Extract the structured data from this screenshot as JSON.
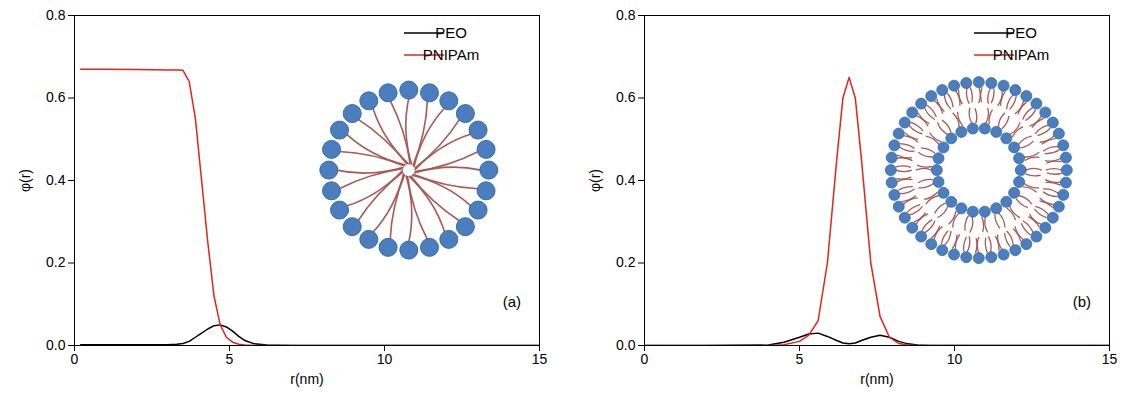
{
  "chart_data": [
    {
      "type": "line",
      "x_label": "r(nm)",
      "y_label": "φ(r)",
      "annotations": [
        "(a)"
      ],
      "legend": "top-right",
      "xlim": [
        0,
        15
      ],
      "xticks": [
        0,
        5,
        10,
        15
      ],
      "ylim": [
        0,
        0.8
      ],
      "yticks": [
        {
          "value": 0,
          "label": "0.0"
        },
        0.2,
        0.4,
        0.6,
        0.8
      ],
      "x": [
        0.2,
        1,
        2,
        3,
        3.3,
        3.5,
        3.7,
        3.9,
        4.1,
        4.3,
        4.5,
        4.7,
        4.9,
        5.1,
        5.3,
        5.5,
        5.8,
        6.2,
        7,
        8,
        10,
        12,
        15
      ],
      "series": [
        {
          "name": "PEO",
          "color": "#000000",
          "values": [
            0.002,
            0.002,
            0.002,
            0.002,
            0.003,
            0.005,
            0.01,
            0.02,
            0.03,
            0.04,
            0.048,
            0.05,
            0.045,
            0.035,
            0.022,
            0.012,
            0.004,
            0.001,
            0,
            0,
            0,
            0,
            0
          ]
        },
        {
          "name": "PNIPAm",
          "color": "#e3241c",
          "values": [
            0.67,
            0.67,
            0.669,
            0.668,
            0.668,
            0.667,
            0.64,
            0.55,
            0.4,
            0.25,
            0.12,
            0.05,
            0.02,
            0.008,
            0.003,
            0.001,
            0,
            0,
            0,
            0,
            0,
            0,
            0
          ]
        }
      ]
    },
    {
      "type": "line",
      "x_label": "r(nm)",
      "y_label": "φ(r)",
      "annotations": [
        "(b)"
      ],
      "legend": "top-right",
      "xlim": [
        0,
        15
      ],
      "xticks": [
        0,
        5,
        10,
        15
      ],
      "ylim": [
        0,
        0.8
      ],
      "yticks": [
        {
          "value": 0,
          "label": "0.0"
        },
        0.2,
        0.4,
        0.6,
        0.8
      ],
      "x": [
        0,
        2,
        4,
        4.5,
        5,
        5.3,
        5.6,
        5.9,
        6.2,
        6.4,
        6.6,
        6.8,
        7.0,
        7.3,
        7.6,
        7.9,
        8.2,
        8.5,
        8.8,
        9.2,
        10,
        12,
        15
      ],
      "series": [
        {
          "name": "PEO",
          "color": "#000000",
          "values": [
            0,
            0,
            0.001,
            0.008,
            0.02,
            0.028,
            0.03,
            0.022,
            0.012,
            0.006,
            0.004,
            0.006,
            0.012,
            0.02,
            0.025,
            0.02,
            0.01,
            0.004,
            0.001,
            0,
            0,
            0,
            0
          ]
        },
        {
          "name": "PNIPAm",
          "color": "#e3241c",
          "values": [
            0,
            0,
            0,
            0.002,
            0.01,
            0.025,
            0.06,
            0.2,
            0.45,
            0.6,
            0.65,
            0.6,
            0.45,
            0.2,
            0.07,
            0.02,
            0.005,
            0.001,
            0,
            0,
            0,
            0,
            0
          ]
        }
      ]
    }
  ]
}
